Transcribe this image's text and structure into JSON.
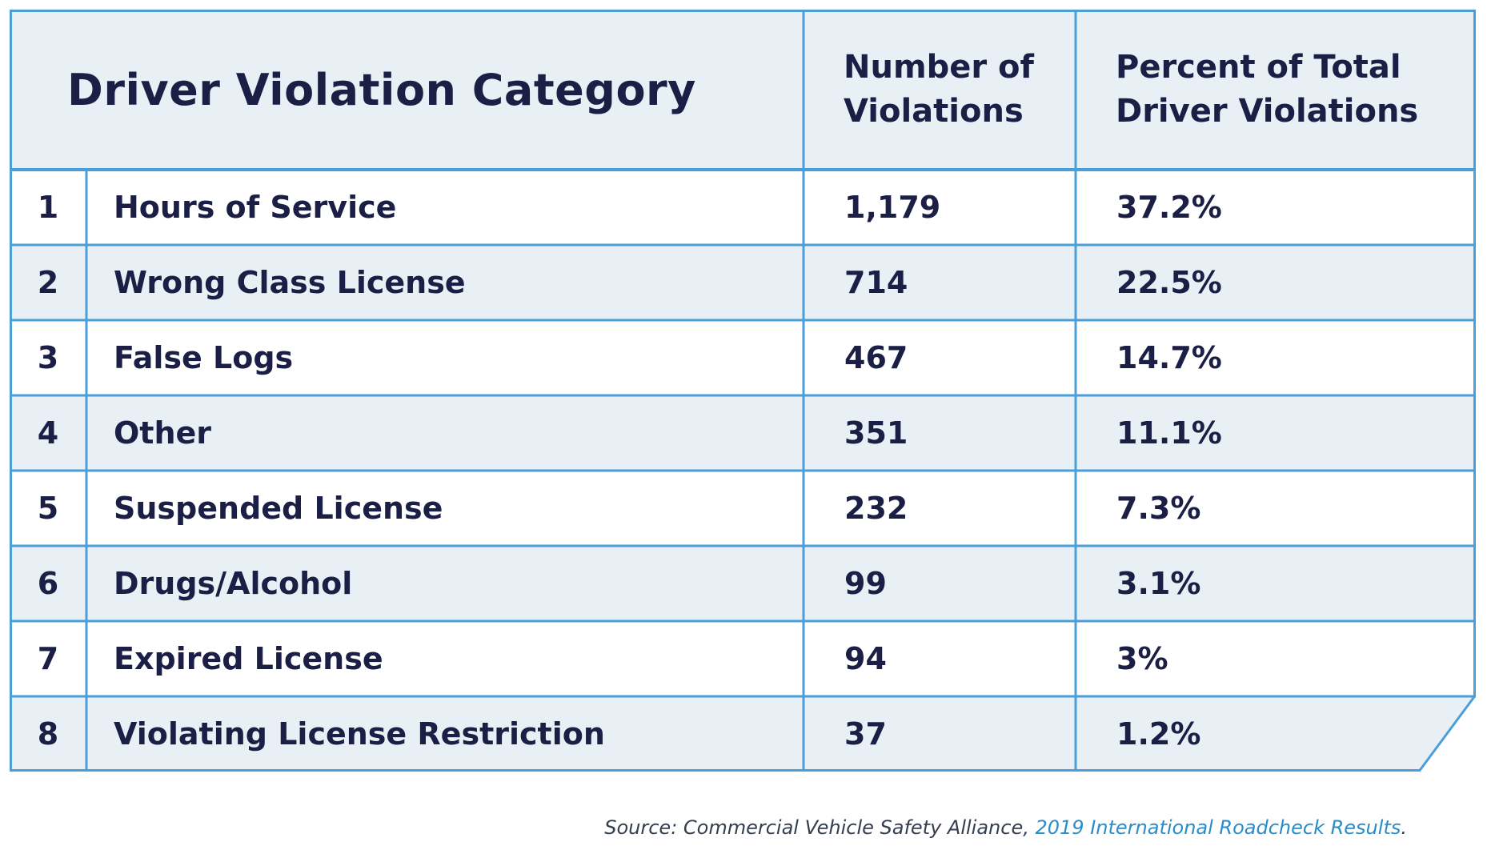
{
  "table": {
    "headers": {
      "category": "Driver Violation Category",
      "count": "Number of Violations",
      "percent": "Percent of Total Driver Violations"
    },
    "rows": [
      {
        "rank": "1",
        "category": "Hours of Service",
        "count": "1,179",
        "percent": "37.2%"
      },
      {
        "rank": "2",
        "category": "Wrong Class License",
        "count": "714",
        "percent": "22.5%"
      },
      {
        "rank": "3",
        "category": "False Logs",
        "count": "467",
        "percent": "14.7%"
      },
      {
        "rank": "4",
        "category": "Other",
        "count": "351",
        "percent": "11.1%"
      },
      {
        "rank": "5",
        "category": "Suspended License",
        "count": "232",
        "percent": "7.3%"
      },
      {
        "rank": "6",
        "category": "Drugs/Alcohol",
        "count": "99",
        "percent": "3.1%"
      },
      {
        "rank": "7",
        "category": "Expired License",
        "count": "94",
        "percent": "3%"
      },
      {
        "rank": "8",
        "category": "Violating License Restriction",
        "count": "37",
        "percent": "1.2%"
      }
    ]
  },
  "source": {
    "prefix": "Source: Commercial Vehicle Safety Alliance, ",
    "link_text": "2019 International Roadcheck Results",
    "suffix": "."
  },
  "colors": {
    "border": "#4a9fd8",
    "shaded_row": "#e8eff5",
    "text": "#1b1f45",
    "link": "#2a8dc8"
  }
}
